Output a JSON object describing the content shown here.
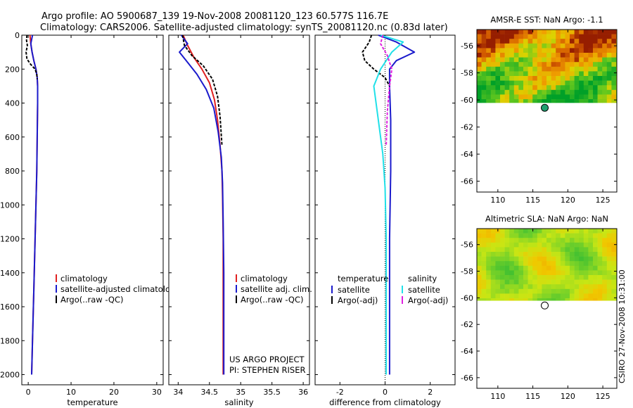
{
  "header": {
    "line1": "Argo profile: AO 5900687_139 19-Nov-2008 20081120_123 60.577S 116.7E",
    "line2": "Climatology: CARS2006. Satellite-adjusted climatology: synTS_20081120.nc (0.83d later)"
  },
  "credit": {
    "line1": "US ARGO PROJECT",
    "line2": "PI: STEPHEN RISER"
  },
  "timestamp": "CSIRO 27-Nov-2008 10:31:00",
  "colors": {
    "climatology": "#e02020",
    "satellite": "#1a1acc",
    "argo": "#000000",
    "satellite_salinity": "#20e0e8",
    "argo_salinity": "#e020e0"
  },
  "chart_data": [
    {
      "id": "temperature",
      "type": "line",
      "xlabel": "temperature",
      "xlim": [
        -1.5,
        31.5
      ],
      "xticks": [
        0,
        10,
        20,
        30
      ],
      "ylim": [
        2060,
        0
      ],
      "yticks": [
        0,
        200,
        400,
        600,
        800,
        1000,
        1200,
        1400,
        1600,
        1800,
        2000
      ],
      "legend": [
        "climatology",
        "satellite-adjusted climatology",
        "Argo(..raw -QC)"
      ],
      "legend_position": "lower-right",
      "series": [
        {
          "name": "climatology",
          "color": "#e02020",
          "x": [
            0.4,
            0.6,
            0.9,
            1.3,
            1.8,
            2.1,
            2.2,
            2.2,
            2.1,
            2.0,
            1.8,
            1.6,
            1.3,
            1.0,
            0.8
          ],
          "y": [
            0,
            50,
            100,
            150,
            200,
            250,
            300,
            400,
            600,
            800,
            1000,
            1200,
            1500,
            1800,
            2000
          ]
        },
        {
          "name": "satellite-adjusted climatology",
          "color": "#1a1acc",
          "x": [
            1.0,
            0.6,
            0.9,
            1.3,
            1.8,
            2.1,
            2.2,
            2.2,
            2.1,
            2.0,
            1.8,
            1.6,
            1.3,
            1.0,
            0.8
          ],
          "y": [
            0,
            50,
            100,
            150,
            200,
            250,
            300,
            400,
            600,
            800,
            1000,
            1200,
            1500,
            1800,
            2000
          ]
        },
        {
          "name": "Argo(..raw -QC)",
          "color": "#000000",
          "dashed": true,
          "x": [
            -0.3,
            -0.4,
            -0.2,
            -0.5,
            -0.3,
            0.5,
            1.6,
            2.0,
            2.1
          ],
          "y": [
            0,
            30,
            60,
            100,
            140,
            170,
            200,
            230,
            260
          ]
        }
      ]
    },
    {
      "id": "salinity",
      "type": "line",
      "xlabel": "salinity",
      "xlim": [
        33.85,
        36.1
      ],
      "xticks": [
        34,
        34.5,
        35,
        35.5,
        36
      ],
      "ylim": [
        2060,
        0
      ],
      "legend": [
        "climatology",
        "satellite adj. clim.",
        "Argo(..raw -QC)"
      ],
      "legend_position": "lower-right",
      "series": [
        {
          "name": "climatology",
          "color": "#e02020",
          "x": [
            34.08,
            34.15,
            34.25,
            34.38,
            34.5,
            34.58,
            34.63,
            34.67,
            34.7,
            34.71,
            34.72,
            34.72,
            34.72,
            34.72
          ],
          "y": [
            0,
            60,
            130,
            200,
            280,
            380,
            500,
            650,
            800,
            950,
            1200,
            1500,
            1800,
            2000
          ]
        },
        {
          "name": "satellite adj. clim.",
          "color": "#1a1acc",
          "x": [
            34.05,
            34.15,
            34.02,
            34.15,
            34.3,
            34.45,
            34.57,
            34.64,
            34.69,
            34.71,
            34.72,
            34.73,
            34.73,
            34.73
          ],
          "y": [
            0,
            50,
            100,
            160,
            230,
            320,
            430,
            570,
            720,
            870,
            1100,
            1400,
            1700,
            2000
          ]
        },
        {
          "name": "Argo(..raw -QC)",
          "color": "#000000",
          "dashed": true,
          "x": [
            34.07,
            34.1,
            34.22,
            34.4,
            34.55,
            34.63,
            34.67,
            34.7
          ],
          "y": [
            0,
            60,
            120,
            180,
            260,
            360,
            480,
            650
          ]
        }
      ]
    },
    {
      "id": "difference",
      "type": "line",
      "xlabel": "difference from climatology",
      "xlim": [
        -3.1,
        3.1
      ],
      "xticks": [
        -2,
        0,
        2
      ],
      "ylim": [
        2060,
        0
      ],
      "legend_groups": [
        {
          "title": "temperature",
          "items": [
            "satellite",
            "Argo(-adj)"
          ]
        },
        {
          "title": "salinity",
          "items": [
            "satellite",
            "Argo(-adj)"
          ]
        }
      ],
      "legend_position": "lower-center",
      "series": [
        {
          "name": "temperature satellite",
          "color": "#1a1acc",
          "x": [
            -0.3,
            0.5,
            1.3,
            0.5,
            0.2,
            0.2,
            0.25,
            0.25,
            0.2,
            0.2,
            0.2
          ],
          "y": [
            0,
            40,
            100,
            150,
            200,
            300,
            500,
            800,
            1200,
            1600,
            2000
          ]
        },
        {
          "name": "temperature Argo(-adj)",
          "color": "#000000",
          "dashed": true,
          "x": [
            -0.6,
            -0.7,
            -1.0,
            -0.9,
            -0.5,
            0.0,
            0.2
          ],
          "y": [
            0,
            40,
            100,
            150,
            200,
            250,
            300
          ]
        },
        {
          "name": "salinity satellite",
          "color": "#20e0e8",
          "x": [
            -0.2,
            0.8,
            0.3,
            -0.2,
            -0.5,
            -0.3,
            -0.1,
            0.0,
            0.05,
            0.05,
            0.05
          ],
          "y": [
            0,
            40,
            100,
            200,
            300,
            500,
            700,
            900,
            1200,
            1600,
            2000
          ]
        },
        {
          "name": "salinity Argo(-adj)",
          "color": "#e020e0",
          "dashed": true,
          "x": [
            -0.1,
            -0.2,
            0.1,
            0.3,
            0.2,
            0.1,
            0.05
          ],
          "y": [
            0,
            50,
            120,
            200,
            300,
            450,
            650
          ]
        }
      ]
    },
    {
      "id": "sst_map",
      "type": "heatmap",
      "title": "AMSR-E SST: NaN Argo: -1.1",
      "xlim": [
        107,
        127
      ],
      "ylim": [
        -66.8,
        -54.8
      ],
      "xticks": [
        110,
        115,
        120,
        125
      ],
      "yticks": [
        -56,
        -58,
        -60,
        -62,
        -64,
        -66
      ],
      "data_extent_lat": [
        -60.2,
        -54.8
      ],
      "float_position": {
        "lon": 116.7,
        "lat": -60.577
      },
      "marker_fill": "#20a070"
    },
    {
      "id": "sla_map",
      "type": "heatmap",
      "title": "Altimetric SLA: NaN Argo: NaN",
      "xlim": [
        107,
        127
      ],
      "ylim": [
        -66.8,
        -54.8
      ],
      "xticks": [
        110,
        115,
        120,
        125
      ],
      "yticks": [
        -56,
        -58,
        -60,
        -62,
        -64,
        -66
      ],
      "data_extent_lat": [
        -60.2,
        -54.8
      ],
      "float_position": {
        "lon": 116.7,
        "lat": -60.577
      },
      "marker_fill": "#ffffff"
    }
  ]
}
